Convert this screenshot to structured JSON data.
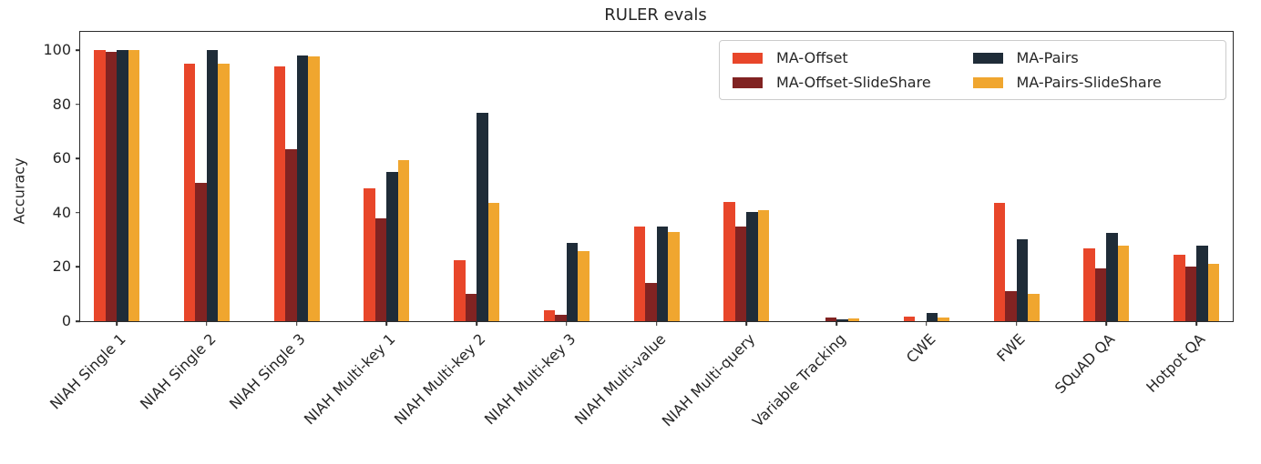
{
  "chart_data": {
    "type": "bar",
    "title": "RULER evals",
    "xlabel": "",
    "ylabel": "Accuracy",
    "ylim": [
      0,
      106.7
    ],
    "yticks": [
      0,
      20,
      40,
      60,
      80,
      100
    ],
    "grid": false,
    "legend_position": "upper right",
    "legend_columns": 2,
    "categories": [
      "NIAH Single 1",
      "NIAH Single 2",
      "NIAH Single 3",
      "NIAH Multi-key 1",
      "NIAH Multi-key 2",
      "NIAH Multi-key 3",
      "NIAH Multi-value",
      "NIAH Multi-query",
      "Variable Tracking",
      "CWE",
      "FWE",
      "SQuAD QA",
      "Hotpot QA"
    ],
    "series": [
      {
        "name": "MA-Offset",
        "color": "#e8462a",
        "values": [
          100,
          95,
          94,
          49,
          22.5,
          4,
          35,
          44,
          0,
          1.7,
          43.5,
          27,
          24.5
        ]
      },
      {
        "name": "MA-Offset-SlideShare",
        "color": "#812322",
        "values": [
          99.4,
          51,
          63.5,
          38,
          10,
          2.5,
          14,
          34.8,
          1.3,
          0,
          11,
          19.5,
          20.3
        ]
      },
      {
        "name": "MA-Pairs",
        "color": "#1f2c38",
        "values": [
          100,
          100,
          98,
          55,
          77,
          29,
          35,
          40.2,
          0.6,
          3,
          30.2,
          32.7,
          28
        ]
      },
      {
        "name": "MA-Pairs-SlideShare",
        "color": "#f0a62f",
        "values": [
          100,
          95,
          97.5,
          59.5,
          43.7,
          26,
          32.8,
          40.8,
          0.9,
          1.2,
          10.2,
          27.8,
          21.3
        ]
      }
    ]
  }
}
